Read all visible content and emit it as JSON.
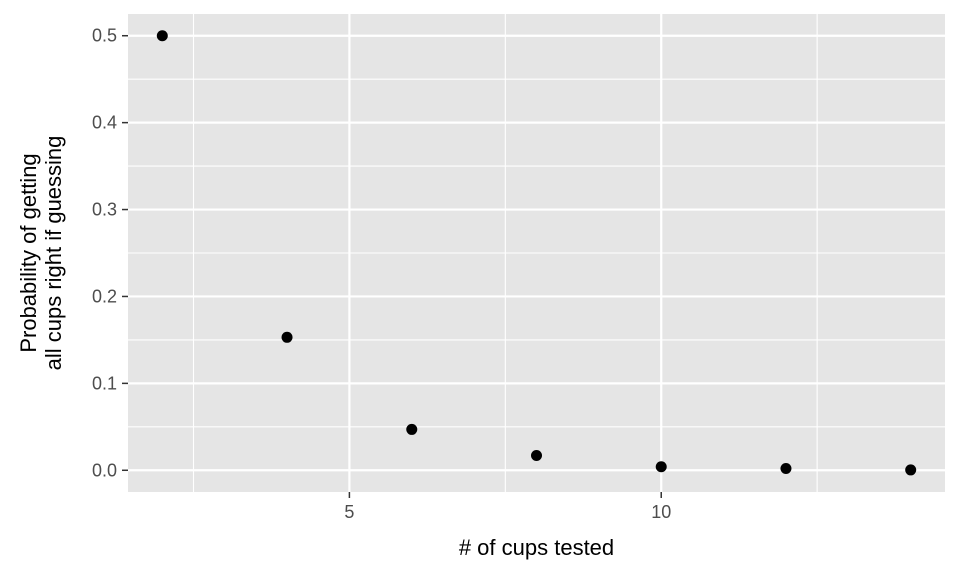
{
  "chart_data": {
    "type": "scatter",
    "title": "",
    "xlabel": "# of cups tested",
    "ylabel_lines": [
      "Probability of getting",
      "all cups right if guessing"
    ],
    "xlim": [
      1.45,
      14.55
    ],
    "ylim": [
      -0.025,
      0.525
    ],
    "x_ticks": [
      5,
      10
    ],
    "x_tick_labels": [
      "5",
      "10"
    ],
    "x_minor_ticks": [
      2.5,
      7.5,
      12.5
    ],
    "y_ticks": [
      0.0,
      0.1,
      0.2,
      0.3,
      0.4,
      0.5
    ],
    "y_tick_labels": [
      "0.0",
      "0.1",
      "0.2",
      "0.3",
      "0.4",
      "0.5"
    ],
    "y_minor_ticks": [
      0.05,
      0.15,
      0.25,
      0.35,
      0.45
    ],
    "grid": true,
    "colors": {
      "panel": "#e5e5e5",
      "grid": "#ffffff",
      "point": "#000000"
    },
    "points": [
      {
        "x": 2,
        "y": 0.5
      },
      {
        "x": 4,
        "y": 0.153
      },
      {
        "x": 6,
        "y": 0.047
      },
      {
        "x": 8,
        "y": 0.017
      },
      {
        "x": 10,
        "y": 0.004
      },
      {
        "x": 12,
        "y": 0.002
      },
      {
        "x": 14,
        "y": 0.0004
      }
    ]
  }
}
